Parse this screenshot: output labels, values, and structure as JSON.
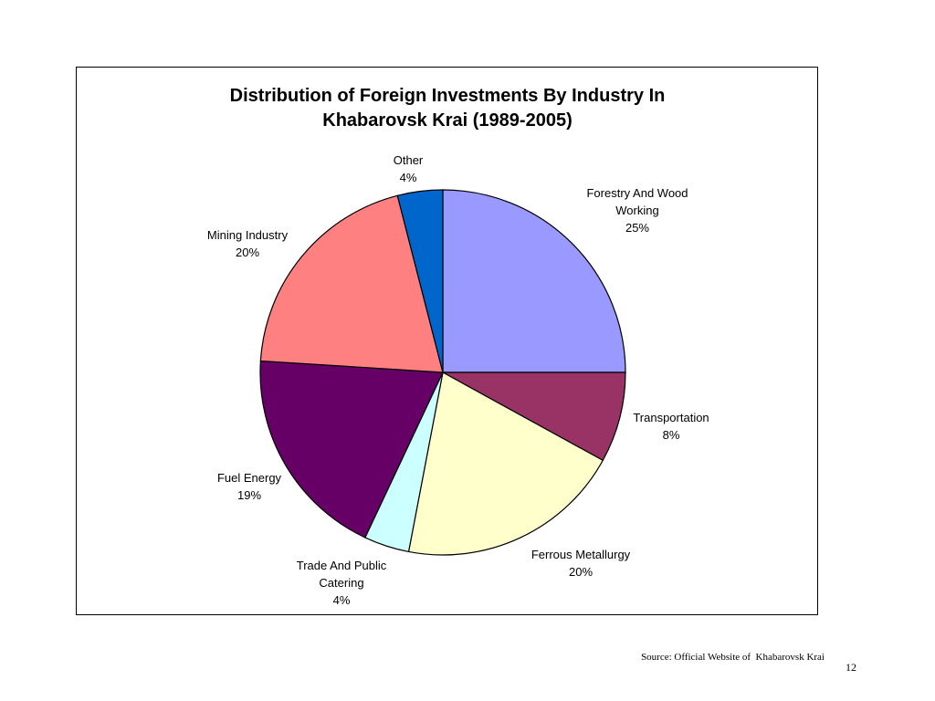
{
  "chart_data": {
    "type": "pie",
    "title_lines": [
      "Distribution of Foreign Investments By Industry In",
      "Khabarovsk Krai (1989-2005)"
    ],
    "slices": [
      {
        "name_lines": [
          "Forestry And Wood",
          "Working"
        ],
        "value": 25,
        "value_label": "25%",
        "color": "#9999ff"
      },
      {
        "name_lines": [
          "Transportation"
        ],
        "value": 8,
        "value_label": "8%",
        "color": "#993366"
      },
      {
        "name_lines": [
          "Ferrous Metallurgy"
        ],
        "value": 20,
        "value_label": "20%",
        "color": "#ffffcc"
      },
      {
        "name_lines": [
          "Trade And Public",
          "Catering"
        ],
        "value": 4,
        "value_label": "4%",
        "color": "#ccffff"
      },
      {
        "name_lines": [
          "Fuel Energy"
        ],
        "value": 19,
        "value_label": "19%",
        "color": "#660066"
      },
      {
        "name_lines": [
          "Mining Industry"
        ],
        "value": 20,
        "value_label": "20%",
        "color": "#ff8080"
      },
      {
        "name_lines": [
          "Other"
        ],
        "value": 4,
        "value_label": "4%",
        "color": "#0066cc"
      }
    ],
    "start": "12 o'clock",
    "direction": "clockwise",
    "legend": "none",
    "edge_color": "#000000"
  },
  "footer": {
    "source": "Source: Official Website of  Khabarovsk Krai",
    "page_number": "12"
  }
}
